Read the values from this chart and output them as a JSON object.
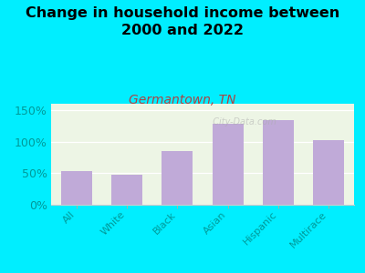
{
  "title": "Change in household income between\n2000 and 2022",
  "subtitle": "Germantown, TN",
  "categories": [
    "All",
    "White",
    "Black",
    "Asian",
    "Hispanic",
    "Multirace"
  ],
  "values": [
    53,
    47,
    85,
    128,
    134,
    102
  ],
  "bar_color": "#c0aad8",
  "background_outer": "#00eeff",
  "background_inner": "#edf5e5",
  "title_fontsize": 11.5,
  "subtitle_fontsize": 10,
  "subtitle_color": "#aa4444",
  "tick_label_color": "#009999",
  "ytick_label_color": "#009999",
  "ylim": [
    0,
    160
  ],
  "yticks": [
    0,
    50,
    100,
    150
  ],
  "watermark": "  City-Data.com"
}
